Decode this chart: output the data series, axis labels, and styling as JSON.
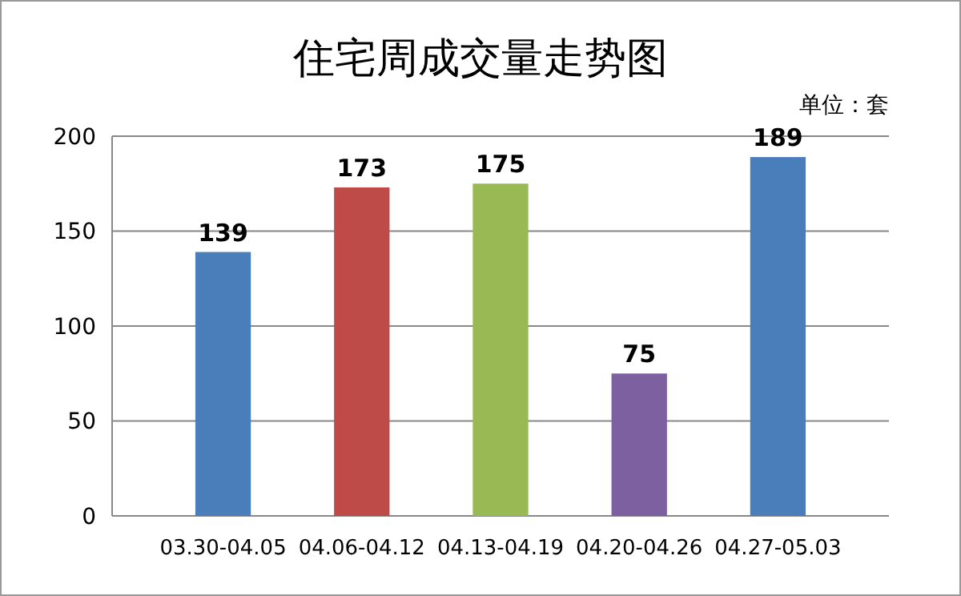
{
  "chart_data": {
    "type": "bar",
    "title": "住宅周成交量走势图",
    "annotations": [
      "单位：套"
    ],
    "categories": [
      "03.30-04.05",
      "04.06-04.12",
      "04.13-04.19",
      "04.20-04.26",
      "04.27-05.03"
    ],
    "values": [
      139,
      173,
      175,
      75,
      189
    ],
    "colors": [
      "#4a7ebb",
      "#be4b48",
      "#98b954",
      "#7d60a0",
      "#4a7ebb"
    ],
    "ylim": [
      0,
      200
    ],
    "yticks": [
      0,
      50,
      100,
      150,
      200
    ],
    "grid": true,
    "data_labels": true
  }
}
